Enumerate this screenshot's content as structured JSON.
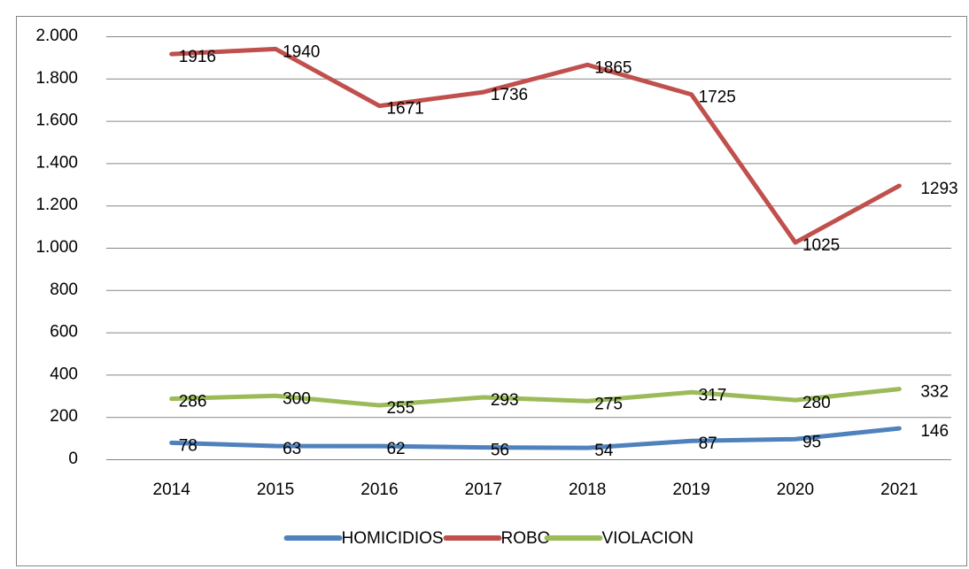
{
  "chart_data": {
    "type": "line",
    "categories": [
      "2014",
      "2015",
      "2016",
      "2017",
      "2018",
      "2019",
      "2020",
      "2021"
    ],
    "series": [
      {
        "name": "HOMICIDIOS",
        "color": "#4f81bd",
        "values": [
          78,
          63,
          62,
          56,
          54,
          87,
          95,
          146
        ]
      },
      {
        "name": "ROBO",
        "color": "#c0504d",
        "values": [
          1916,
          1940,
          1671,
          1736,
          1865,
          1725,
          1025,
          1293
        ]
      },
      {
        "name": "VIOLACION",
        "color": "#9bbb59",
        "values": [
          286,
          300,
          255,
          293,
          275,
          317,
          280,
          332
        ]
      }
    ],
    "ylim": [
      0,
      2000
    ],
    "yticks": [
      0,
      200,
      400,
      600,
      800,
      {
        "value": 1000,
        "label": "1.000"
      },
      {
        "value": 1200,
        "label": "1.200"
      },
      {
        "value": 1400,
        "label": "1.400"
      },
      {
        "value": 1600,
        "label": "1.600"
      },
      {
        "value": 1800,
        "label": "1.800"
      },
      {
        "value": 2000,
        "label": "2.000"
      }
    ],
    "grid": true,
    "legend": "bottom"
  }
}
